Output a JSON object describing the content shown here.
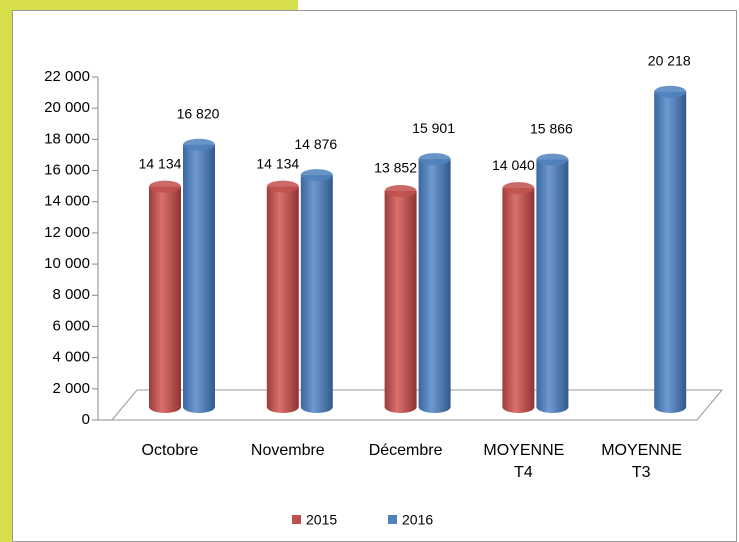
{
  "chart_data": {
    "type": "bar3d",
    "categories": [
      "Octobre",
      "Novembre",
      "Décembre",
      "MOYENNE T4",
      "MOYENNE T3"
    ],
    "series": [
      {
        "name": "2015",
        "color": "#c0504d",
        "values": [
          14134,
          14134,
          13852,
          14040,
          null
        ],
        "value_labels": [
          "14 134",
          "14 134",
          "13 852",
          "14 040",
          null
        ]
      },
      {
        "name": "2016",
        "color": "#4f81bd",
        "values": [
          16820,
          14876,
          15901,
          15866,
          20218
        ],
        "value_labels": [
          "16 820",
          "14 876",
          "15 901",
          "15 866",
          "20 218"
        ]
      }
    ],
    "ylim": [
      0,
      22000
    ],
    "yticks": [
      0,
      {
        "value": 2000,
        "label": "2 000"
      },
      {
        "value": 4000,
        "label": "4 000"
      },
      {
        "value": 6000,
        "label": "6 000"
      },
      {
        "value": 8000,
        "label": "8 000"
      },
      {
        "value": 10000,
        "label": "10 000"
      },
      {
        "value": 12000,
        "label": "12 000"
      },
      {
        "value": 14000,
        "label": "14 000"
      },
      {
        "value": 16000,
        "label": "16 000"
      },
      {
        "value": 18000,
        "label": "18 000"
      },
      {
        "value": 20000,
        "label": "20 000"
      },
      {
        "value": 22000,
        "label": "22 000"
      }
    ],
    "legend": "bottom"
  }
}
